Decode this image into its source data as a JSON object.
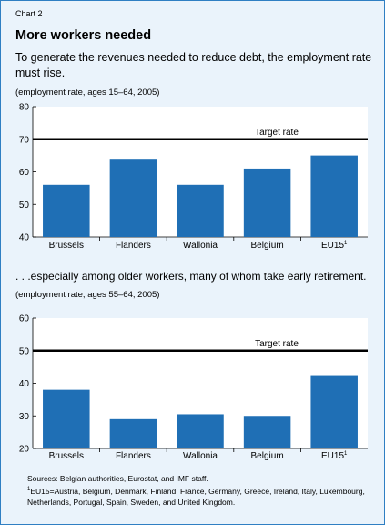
{
  "header": {
    "chart_label": "Chart 2",
    "title": "More workers needed",
    "subtitle": "To generate the revenues needed to reduce debt, the employment rate must rise.",
    "note1": "(employment rate, ages 15–64, 2005)",
    "section2": ". . .especially among older workers, many of whom take early retirement.",
    "note2": "(employment rate, ages 55–64, 2005)"
  },
  "footer": {
    "sources": "Sources: Belgian authorities, Eurostat, and IMF staff.",
    "footnote_mark": "1",
    "footnote_text": "EU15=Austria, Belgium, Denmark, Finland, France, Germany, Greece, Ireland, Italy, Luxembourg, Netherlands, Portugal, Spain, Sweden, and United Kingdom."
  },
  "colors": {
    "bar": "#1f6fb5",
    "background": "#eaf3fb",
    "plot_background": "#ffffff",
    "frame_border": "#2f7fc3",
    "target_line": "#000000"
  },
  "chart_data": [
    {
      "type": "bar",
      "categories": [
        "Brussels",
        "Flanders",
        "Wallonia",
        "Belgium",
        "EU15"
      ],
      "category_superscripts": [
        "",
        "",
        "",
        "",
        "1"
      ],
      "values": [
        56,
        64,
        56,
        61,
        65
      ],
      "ylim": [
        40,
        80
      ],
      "yticks": [
        40,
        50,
        60,
        70,
        80
      ],
      "target": {
        "value": 70,
        "label": "Target rate"
      },
      "grid": false
    },
    {
      "type": "bar",
      "categories": [
        "Brussels",
        "Flanders",
        "Wallonia",
        "Belgium",
        "EU15"
      ],
      "category_superscripts": [
        "",
        "",
        "",
        "",
        "1"
      ],
      "values": [
        38,
        29,
        30.5,
        30,
        42.5
      ],
      "ylim": [
        20,
        60
      ],
      "yticks": [
        20,
        30,
        40,
        50,
        60
      ],
      "target": {
        "value": 50,
        "label": "Target rate"
      },
      "grid": false
    }
  ]
}
